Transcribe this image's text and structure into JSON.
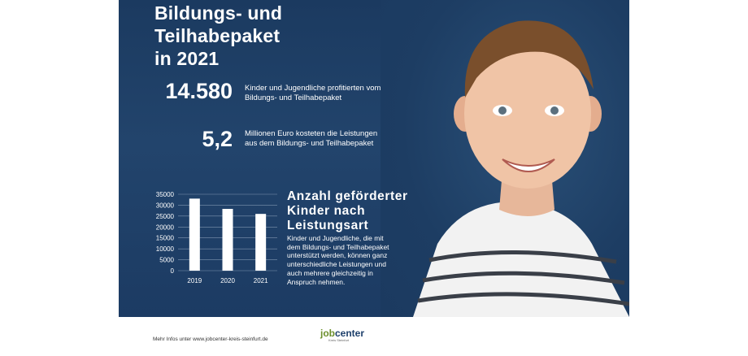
{
  "headline": {
    "line1": "Bildungs- und",
    "line2": "Teilhabepaket",
    "line3": "in 2021"
  },
  "stat1": {
    "value": "14.580",
    "line1": "Kinder und Jugendliche profitierten vom",
    "line2": "Bildungs- und Teilhabepaket"
  },
  "stat2": {
    "value": "5,2",
    "line1": "Millionen Euro kosteten die Leistungen",
    "line2": "aus dem Bildungs- und Teilhabepaket"
  },
  "chart_title": {
    "line1": "Anzahl geförderter",
    "line2": "Kinder nach",
    "line3": "Leistungsart"
  },
  "chart_desc": {
    "line1": "Kinder und Jugendliche, die mit",
    "line2": "dem Bildungs- und Teilhabepaket",
    "line3": "unterstützt werden, können ganz",
    "line4": "unterschiedliche Leistungen und",
    "line5": "auch mehrere gleichzeitig in",
    "line6": "Anspruch nehmen."
  },
  "chart_data": {
    "type": "bar",
    "categories": [
      "2019",
      "2020",
      "2021"
    ],
    "values": [
      33000,
      28300,
      26000
    ],
    "ylim": [
      0,
      35000
    ],
    "yticks": [
      0,
      5000,
      10000,
      15000,
      20000,
      25000,
      30000,
      35000
    ],
    "grid": true,
    "bar_color": "#ffffff",
    "grid_color": "#7f95b0",
    "text_color": "#ffffff"
  },
  "footer": {
    "text": "Mehr Infos unter www.jobcenter-kreis-steinfurt.de",
    "logo_job": "job",
    "logo_center": "center",
    "logo_sub": "Kreis Steinfurt"
  },
  "colors": {
    "background": "#1b3a60",
    "logo_green": "#6c8f2c",
    "logo_blue": "#1d3f6b"
  }
}
